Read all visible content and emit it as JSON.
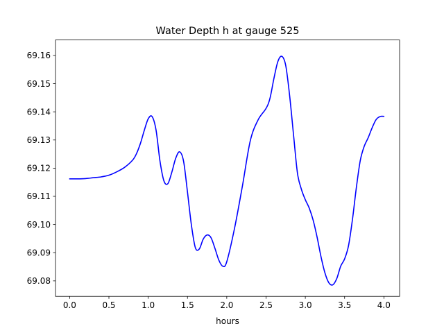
{
  "chart_data": {
    "type": "line",
    "title": "Water Depth h at gauge 525",
    "xlabel": "hours",
    "ylabel": "",
    "xlim": [
      -0.18,
      4.2
    ],
    "ylim": [
      69.0745,
      69.1655
    ],
    "xticks": [
      0.0,
      0.5,
      1.0,
      1.5,
      2.0,
      2.5,
      3.0,
      3.5,
      4.0
    ],
    "xtick_labels": [
      "0.0",
      "0.5",
      "1.0",
      "1.5",
      "2.0",
      "2.5",
      "3.0",
      "3.5",
      "4.0"
    ],
    "yticks": [
      69.08,
      69.09,
      69.1,
      69.11,
      69.12,
      69.13,
      69.14,
      69.15,
      69.16
    ],
    "ytick_labels": [
      "69.08",
      "69.09",
      "69.10",
      "69.11",
      "69.12",
      "69.13",
      "69.14",
      "69.15",
      "69.16"
    ],
    "grid": false,
    "series": [
      {
        "color": "#0000ff",
        "x": [
          0.0,
          0.1,
          0.2,
          0.3,
          0.4,
          0.5,
          0.6,
          0.7,
          0.8,
          0.85,
          0.9,
          0.95,
          1.0,
          1.05,
          1.1,
          1.15,
          1.2,
          1.25,
          1.3,
          1.35,
          1.4,
          1.45,
          1.5,
          1.55,
          1.6,
          1.65,
          1.7,
          1.75,
          1.8,
          1.85,
          1.9,
          1.95,
          2.0,
          2.1,
          2.2,
          2.3,
          2.4,
          2.5,
          2.55,
          2.6,
          2.65,
          2.7,
          2.75,
          2.8,
          2.85,
          2.9,
          2.95,
          3.0,
          3.05,
          3.1,
          3.15,
          3.2,
          3.25,
          3.3,
          3.35,
          3.4,
          3.45,
          3.5,
          3.55,
          3.6,
          3.65,
          3.7,
          3.75,
          3.8,
          3.85,
          3.9,
          3.95,
          4.0
        ],
        "values": [
          69.1162,
          69.1162,
          69.1163,
          69.1166,
          69.1169,
          69.1175,
          69.1187,
          69.1203,
          69.1228,
          69.1251,
          69.1287,
          69.1334,
          69.1375,
          69.1383,
          69.1335,
          69.1225,
          69.1155,
          69.1145,
          69.1185,
          69.1235,
          69.1258,
          69.1225,
          69.1115,
          69.0998,
          69.0918,
          69.0913,
          69.0948,
          69.0963,
          69.0953,
          69.0915,
          69.0873,
          69.0852,
          69.0868,
          69.0988,
          69.1138,
          69.1298,
          69.1372,
          69.1412,
          69.1448,
          69.1518,
          69.1578,
          69.1597,
          69.1565,
          69.1458,
          69.1318,
          69.1182,
          69.1125,
          69.1088,
          69.1058,
          69.1015,
          69.0955,
          69.0885,
          69.0828,
          69.0793,
          69.0786,
          69.0808,
          69.0852,
          69.0878,
          69.0925,
          69.1018,
          69.1132,
          69.1228,
          69.1278,
          69.1308,
          69.1343,
          69.1372,
          69.1383,
          69.1384
        ]
      }
    ]
  }
}
